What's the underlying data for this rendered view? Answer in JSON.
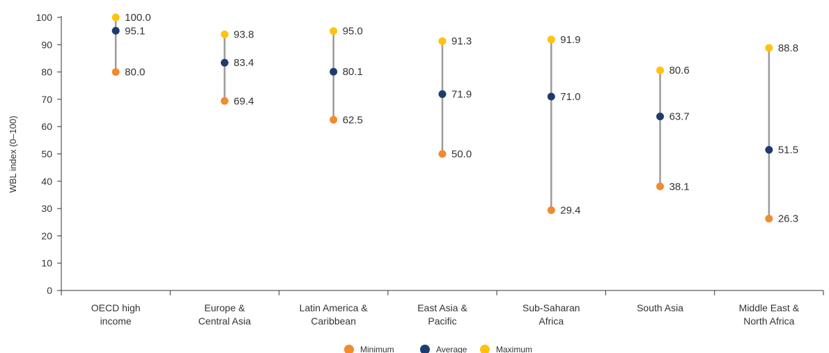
{
  "chart_data": {
    "type": "dot-range",
    "ylabel": "WBL index (0–100)",
    "ylim": [
      0,
      100
    ],
    "yticks": [
      0,
      10,
      20,
      30,
      40,
      50,
      60,
      70,
      80,
      90,
      100
    ],
    "grid": false,
    "legend_position": "bottom-center",
    "categories": [
      [
        "OECD high",
        "income"
      ],
      [
        "Europe &",
        "Central Asia"
      ],
      [
        "Latin America &",
        "Caribbean"
      ],
      [
        "East Asia &",
        "Pacific"
      ],
      [
        "Sub-Saharan",
        "Africa"
      ],
      [
        "South Asia"
      ],
      [
        "Middle East &",
        "North Africa"
      ]
    ],
    "series": [
      {
        "name": "Minimum",
        "color": "#F28A2E",
        "values": [
          80.0,
          69.4,
          62.5,
          50.0,
          29.4,
          38.1,
          26.3
        ]
      },
      {
        "name": "Average",
        "color": "#1F3B6E",
        "values": [
          95.1,
          83.4,
          80.1,
          71.9,
          71.0,
          63.7,
          51.5
        ]
      },
      {
        "name": "Maximum",
        "color": "#FFC20E",
        "values": [
          100.0,
          93.8,
          95.0,
          91.3,
          91.9,
          80.6,
          88.8
        ]
      }
    ],
    "value_labels": {
      "Minimum": [
        "80.0",
        "69.4",
        "62.5",
        "50.0",
        "29.4",
        "38.1",
        "26.3"
      ],
      "Average": [
        "95.1",
        "83.4",
        "80.1",
        "71.9",
        "71.0",
        "63.7",
        "51.5"
      ],
      "Maximum": [
        "100.0",
        "93.8",
        "95.0",
        "91.3",
        "91.9",
        "80.6",
        "88.8"
      ]
    },
    "range_line_color": "#9B9B9B"
  }
}
